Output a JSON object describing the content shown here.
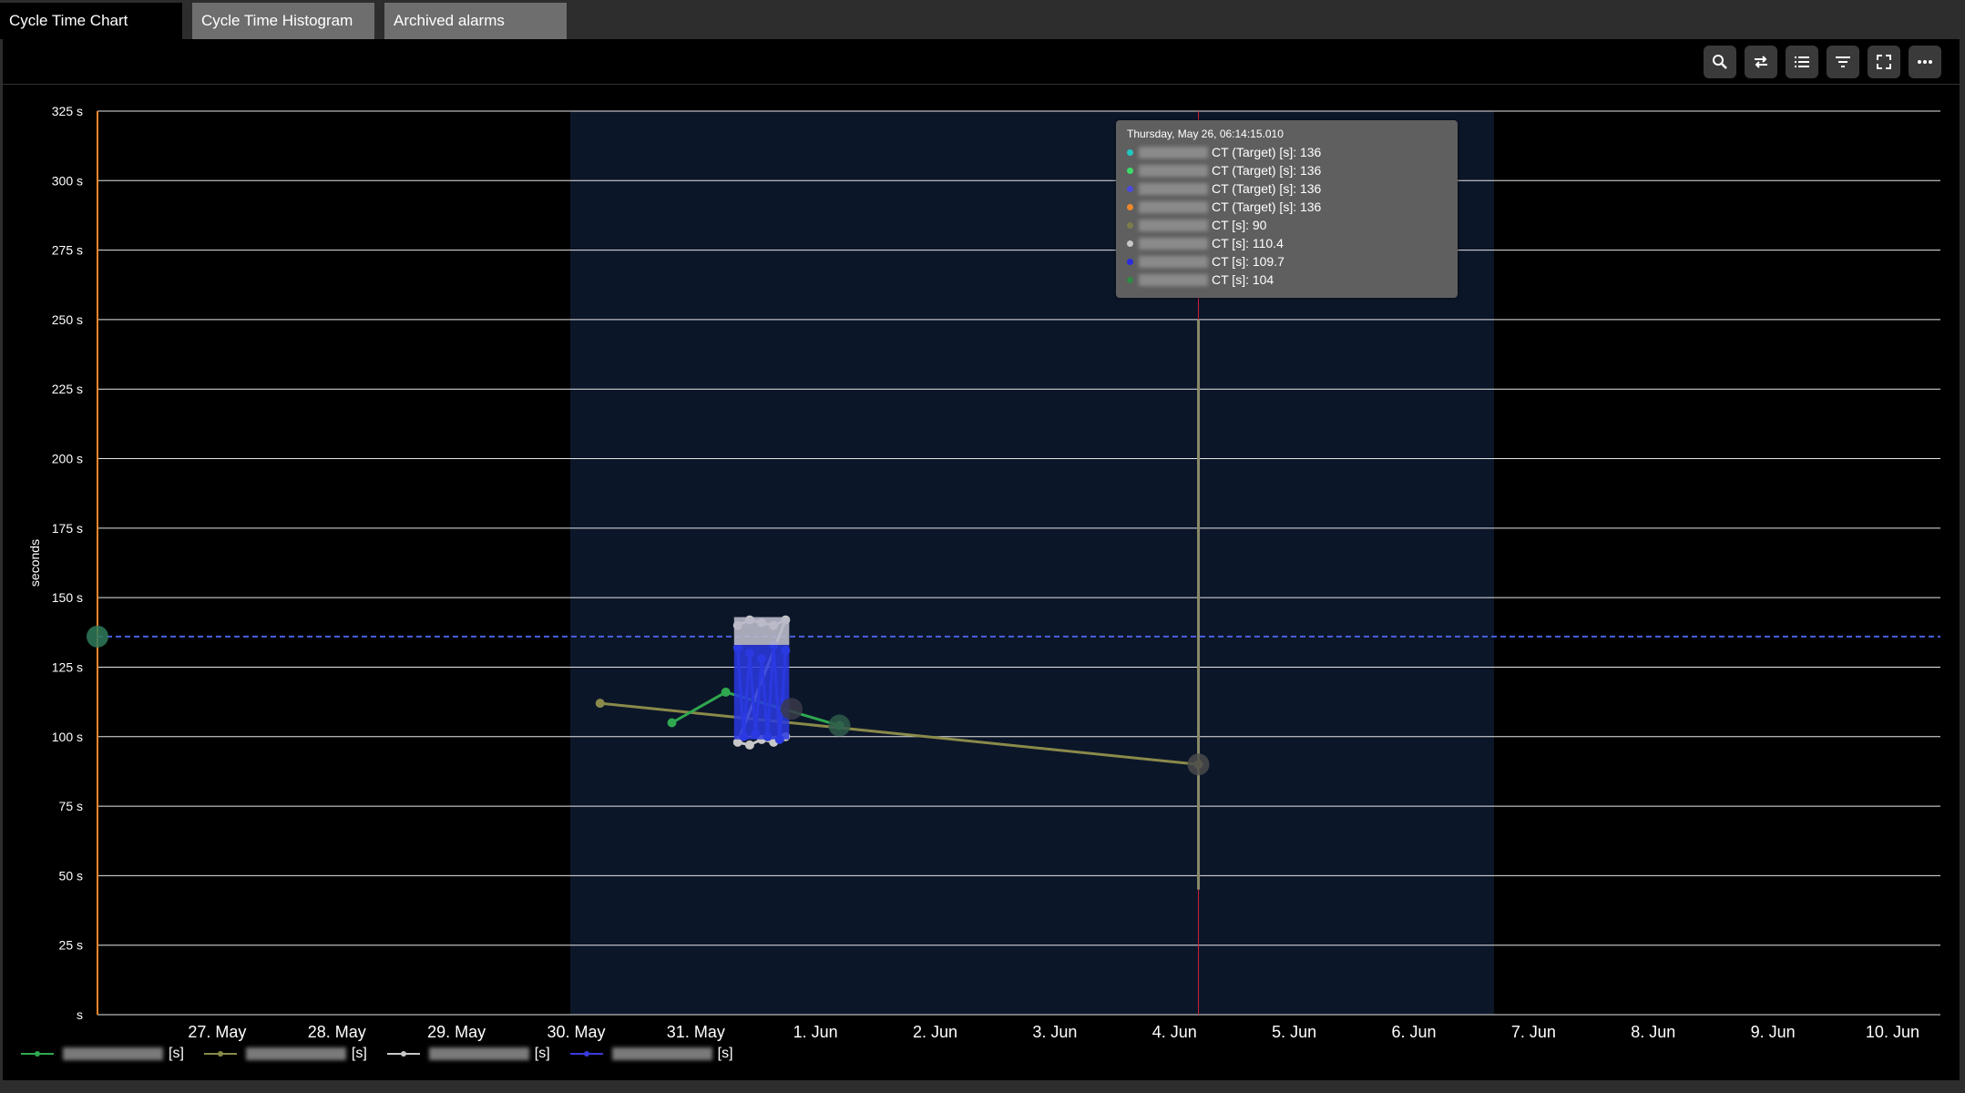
{
  "tabs": [
    {
      "label": "Cycle Time Chart",
      "active": true
    },
    {
      "label": "Cycle Time Histogram",
      "active": false
    },
    {
      "label": "Archived alarms",
      "active": false
    }
  ],
  "toolbar": {
    "buttons": [
      {
        "icon": "search-icon"
      },
      {
        "icon": "swap-icon"
      },
      {
        "icon": "list-icon"
      },
      {
        "icon": "filter-icon"
      },
      {
        "icon": "fullscreen-icon"
      },
      {
        "icon": "more-icon"
      }
    ]
  },
  "tooltip": {
    "title": "Thursday, May 26, 06:14:15.010",
    "rows": [
      {
        "color": "#1fc8c0",
        "label": "CT (Target) [s]: 136"
      },
      {
        "color": "#3ddc6a",
        "label": "CT (Target) [s]: 136"
      },
      {
        "color": "#4a4adf",
        "label": "CT (Target) [s]: 136"
      },
      {
        "color": "#f0862a",
        "label": "CT (Target) [s]: 136"
      },
      {
        "color": "#7c7c4a",
        "label": "CT [s]: 90"
      },
      {
        "color": "#c8c8c8",
        "label": "CT [s]: 110.4"
      },
      {
        "color": "#2a2adf",
        "label": "CT [s]: 109.7"
      },
      {
        "color": "#2f8a45",
        "label": "CT [s]: 104"
      }
    ]
  },
  "legend": [
    {
      "color": "#2fa84f",
      "suffix": "[s]"
    },
    {
      "color": "#8a8a4a",
      "suffix": "[s]"
    },
    {
      "color": "#c8c8c8",
      "suffix": "[s]"
    },
    {
      "color": "#3a3adf",
      "suffix": "[s]"
    }
  ],
  "chart_data": {
    "type": "line",
    "ylabel": "seconds",
    "ylim": [
      0,
      325
    ],
    "y_ticks": [
      "s",
      "25 s",
      "50 s",
      "75 s",
      "100 s",
      "125 s",
      "150 s",
      "175 s",
      "200 s",
      "225 s",
      "250 s",
      "275 s",
      "300 s",
      "325 s"
    ],
    "y_tick_values": [
      0,
      25,
      50,
      75,
      100,
      125,
      150,
      175,
      200,
      225,
      250,
      275,
      300,
      325
    ],
    "x_ticks": [
      "27. May",
      "28. May",
      "29. May",
      "30. May",
      "31. May",
      "1. Jun",
      "2. Jun",
      "3. Jun",
      "4. Jun",
      "5. Jun",
      "6. Jun",
      "7. Jun",
      "8. Jun",
      "9. Jun",
      "10. Jun"
    ],
    "xlim_days": [
      26.0,
      41.4
    ],
    "highlight_band_days": [
      29.95,
      37.67
    ],
    "crosshair_day": 35.2,
    "target_value": 136,
    "target_color": "#4a60e0",
    "grid": true,
    "series": [
      {
        "color": "#8a8a4a",
        "points": [
          [
            30.2,
            112
          ],
          [
            35.2,
            90
          ]
        ]
      },
      {
        "color": "#2fa84f",
        "points": [
          [
            30.8,
            105
          ],
          [
            31.25,
            116
          ],
          [
            32.2,
            104
          ]
        ]
      },
      {
        "color": "#c8c8c8",
        "points": [
          [
            31.35,
            140
          ],
          [
            31.45,
            142
          ],
          [
            31.55,
            141
          ],
          [
            31.65,
            140
          ],
          [
            31.75,
            142
          ],
          [
            31.35,
            98
          ],
          [
            31.45,
            97
          ],
          [
            31.55,
            99
          ],
          [
            31.65,
            98
          ],
          [
            31.75,
            100
          ]
        ]
      },
      {
        "color": "#2a3ae0",
        "points": [
          [
            31.35,
            132
          ],
          [
            31.4,
            100
          ],
          [
            31.45,
            130
          ],
          [
            31.5,
            101
          ],
          [
            31.55,
            128
          ],
          [
            31.6,
            100
          ],
          [
            31.65,
            133
          ],
          [
            31.7,
            99
          ],
          [
            31.75,
            131
          ]
        ]
      }
    ],
    "vertical_spikes": [
      {
        "color": "#8a8a6a",
        "day": 35.2,
        "from": 45,
        "to": 250
      }
    ],
    "markers": [
      {
        "color": "#2f7a5a",
        "day": 26.0,
        "value": 136
      },
      {
        "color": "#2f5a4a",
        "day": 32.2,
        "value": 104
      },
      {
        "color": "#4a4a4a",
        "day": 35.2,
        "value": 90
      },
      {
        "color": "#3a3a4a",
        "day": 31.8,
        "value": 110
      }
    ]
  }
}
